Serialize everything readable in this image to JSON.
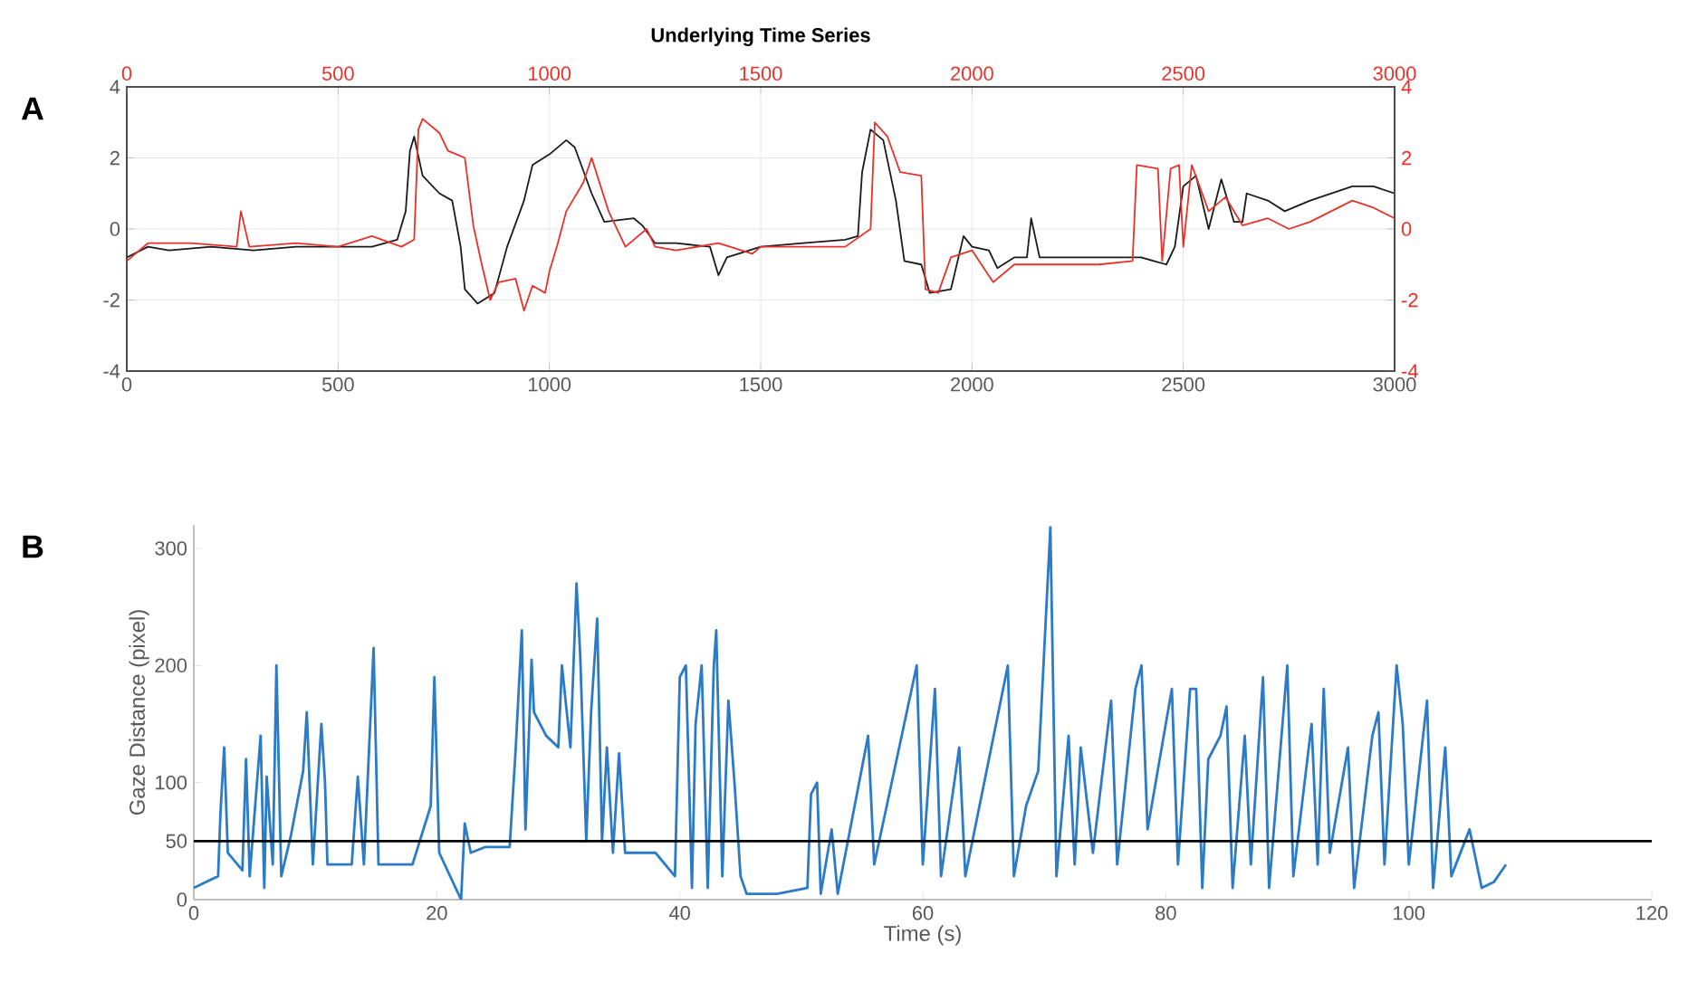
{
  "chart_data": [
    {
      "type": "line",
      "title": "Underlying Time Series",
      "annotations": [
        "A"
      ],
      "grid": true,
      "xlim": [
        0,
        3000
      ],
      "xticks": [
        0,
        500,
        1000,
        1500,
        2000,
        2500,
        3000
      ],
      "ylim": [
        -4,
        4
      ],
      "yticks": [
        -4,
        -2,
        0,
        2,
        4
      ],
      "x2lim": [
        0,
        3000
      ],
      "x2ticks": [
        0,
        500,
        1000,
        1500,
        2000,
        2500,
        3000
      ],
      "y2lim": [
        -4,
        4
      ],
      "y2ticks": [
        -4,
        -2,
        0,
        2,
        4
      ],
      "series": [
        {
          "color": "#1a1a1a",
          "x": [
            0,
            50,
            100,
            200,
            300,
            400,
            500,
            580,
            640,
            660,
            670,
            680,
            700,
            740,
            770,
            790,
            800,
            830,
            870,
            900,
            940,
            960,
            1000,
            1040,
            1060,
            1100,
            1130,
            1200,
            1220,
            1250,
            1300,
            1380,
            1400,
            1420,
            1500,
            1600,
            1700,
            1730,
            1740,
            1760,
            1790,
            1820,
            1840,
            1880,
            1900,
            1950,
            1980,
            2000,
            2040,
            2060,
            2100,
            2130,
            2140,
            2160,
            2300,
            2400,
            2460,
            2480,
            2500,
            2530,
            2560,
            2590,
            2620,
            2640,
            2650,
            2700,
            2740,
            2800,
            2900,
            2950,
            3000
          ],
          "values": [
            -0.8,
            -0.5,
            -0.6,
            -0.5,
            -0.6,
            -0.5,
            -0.5,
            -0.5,
            -0.3,
            0.5,
            2.2,
            2.6,
            1.5,
            1.0,
            0.8,
            -0.5,
            -1.7,
            -2.1,
            -1.8,
            -0.5,
            0.8,
            1.8,
            2.1,
            2.5,
            2.3,
            1.0,
            0.2,
            0.3,
            0.1,
            -0.4,
            -0.4,
            -0.5,
            -1.3,
            -0.8,
            -0.5,
            -0.4,
            -0.3,
            -0.2,
            1.6,
            2.8,
            2.5,
            0.8,
            -0.9,
            -1.0,
            -1.8,
            -1.7,
            -0.2,
            -0.5,
            -0.6,
            -1.1,
            -0.8,
            -0.8,
            0.3,
            -0.8,
            -0.8,
            -0.8,
            -1.0,
            -0.5,
            1.2,
            1.5,
            0.0,
            1.4,
            0.2,
            0.2,
            1.0,
            0.8,
            0.5,
            0.8,
            1.2,
            1.2,
            1.0
          ]
        },
        {
          "color": "#e8312a",
          "axis": "y2",
          "x": [
            0,
            50,
            150,
            260,
            270,
            290,
            400,
            500,
            580,
            650,
            680,
            690,
            700,
            740,
            760,
            800,
            820,
            840,
            860,
            880,
            920,
            940,
            960,
            990,
            1000,
            1020,
            1040,
            1080,
            1100,
            1140,
            1180,
            1230,
            1250,
            1300,
            1400,
            1480,
            1500,
            1600,
            1700,
            1760,
            1770,
            1800,
            1830,
            1880,
            1890,
            1920,
            1950,
            2000,
            2050,
            2100,
            2200,
            2300,
            2380,
            2390,
            2440,
            2450,
            2470,
            2490,
            2500,
            2520,
            2560,
            2600,
            2640,
            2700,
            2750,
            2800,
            2900,
            2950,
            3000
          ],
          "values": [
            -0.9,
            -0.4,
            -0.4,
            -0.5,
            0.5,
            -0.5,
            -0.4,
            -0.5,
            -0.2,
            -0.5,
            -0.3,
            2.8,
            3.1,
            2.7,
            2.2,
            2.0,
            0.1,
            -1.0,
            -2.0,
            -1.5,
            -1.4,
            -2.3,
            -1.6,
            -1.8,
            -1.2,
            -0.4,
            0.5,
            1.3,
            2.0,
            0.5,
            -0.5,
            0.0,
            -0.5,
            -0.6,
            -0.4,
            -0.7,
            -0.5,
            -0.5,
            -0.5,
            0.0,
            3.0,
            2.6,
            1.6,
            1.5,
            -1.7,
            -1.8,
            -0.8,
            -0.6,
            -1.5,
            -1.0,
            -1.0,
            -1.0,
            -0.9,
            1.8,
            1.7,
            -0.9,
            1.7,
            1.8,
            -0.5,
            1.8,
            0.5,
            0.9,
            0.1,
            0.3,
            0.0,
            0.2,
            0.8,
            0.6,
            0.3
          ]
        }
      ]
    },
    {
      "type": "line",
      "xlabel": "Time (s)",
      "ylabel": "Gaze Distance (pixel)",
      "annotations": [
        "B"
      ],
      "xlim": [
        0,
        120
      ],
      "xticks": [
        0,
        20,
        40,
        60,
        80,
        100,
        120
      ],
      "ylim": [
        0,
        320
      ],
      "yticks": [
        0,
        50,
        100,
        200,
        300
      ],
      "ref_lines": [
        {
          "axis": "y",
          "value": 50,
          "color": "#000000"
        }
      ],
      "series": [
        {
          "color": "#2b7bc6",
          "x": [
            0,
            1,
            2,
            2.2,
            2.5,
            2.8,
            4,
            4.3,
            4.6,
            5.5,
            5.8,
            6,
            6.5,
            6.8,
            7.2,
            8,
            9,
            9.3,
            9.8,
            10.5,
            10.8,
            11,
            13,
            13.5,
            14,
            14.8,
            15.2,
            18,
            19.5,
            19.8,
            20.2,
            22,
            22.3,
            22.8,
            24,
            26,
            26.5,
            27,
            27.3,
            27.8,
            28,
            29,
            30,
            30.3,
            31,
            31.5,
            31.8,
            32.3,
            32.7,
            33.2,
            33.6,
            34,
            34.5,
            35,
            35.5,
            38,
            39.6,
            40,
            40.5,
            41,
            41.3,
            41.8,
            42.3,
            42.8,
            43,
            43.5,
            44,
            44.5,
            45,
            45.5,
            48,
            50.5,
            50.8,
            51.3,
            51.6,
            52.5,
            53,
            55.5,
            56,
            59.5,
            60,
            61,
            61.5,
            63,
            63.5,
            67,
            67.5,
            68.5,
            69.5,
            70.5,
            71,
            72,
            72.5,
            73,
            74,
            75.5,
            76,
            77,
            77.5,
            78,
            78.5,
            80.5,
            81,
            82,
            82.5,
            83,
            83.5,
            84.5,
            85,
            85.5,
            86.5,
            87,
            88,
            88.5,
            90,
            90.5,
            92,
            92.5,
            93,
            93.5,
            95,
            95.5,
            97,
            97.5,
            98,
            99,
            99.5,
            100,
            101.5,
            102,
            103,
            103.5,
            105,
            106,
            107,
            108
          ],
          "values": [
            10,
            15,
            20,
            75,
            130,
            40,
            25,
            120,
            20,
            140,
            10,
            105,
            30,
            200,
            20,
            55,
            110,
            160,
            30,
            150,
            100,
            30,
            30,
            105,
            30,
            215,
            30,
            30,
            80,
            190,
            40,
            0,
            65,
            40,
            45,
            45,
            130,
            230,
            60,
            205,
            160,
            140,
            130,
            200,
            130,
            270,
            210,
            50,
            160,
            240,
            50,
            130,
            40,
            125,
            40,
            40,
            20,
            190,
            200,
            10,
            150,
            200,
            10,
            200,
            230,
            20,
            170,
            100,
            20,
            5,
            5,
            10,
            90,
            100,
            5,
            60,
            5,
            140,
            30,
            200,
            30,
            180,
            20,
            130,
            20,
            200,
            20,
            80,
            110,
            318,
            20,
            140,
            30,
            130,
            40,
            170,
            30,
            130,
            180,
            200,
            60,
            180,
            30,
            180,
            180,
            10,
            120,
            140,
            165,
            10,
            140,
            30,
            190,
            10,
            200,
            20,
            150,
            30,
            180,
            40,
            130,
            10,
            140,
            160,
            30,
            200,
            150,
            30,
            170,
            10,
            130,
            20,
            60,
            10,
            15,
            30
          ]
        }
      ]
    }
  ]
}
